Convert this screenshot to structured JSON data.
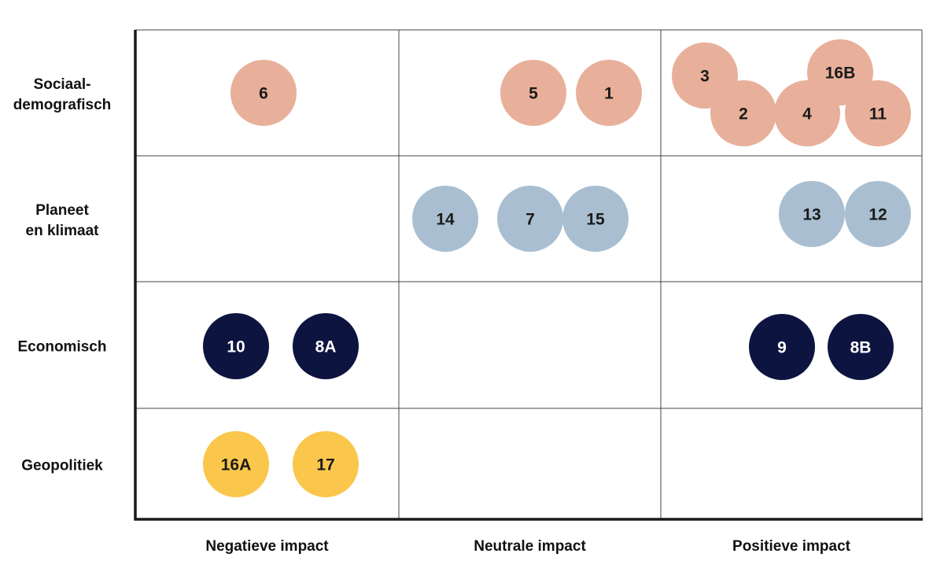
{
  "chart_data": {
    "type": "impact-matrix",
    "rows": [
      {
        "key": "sociaal",
        "label_lines": [
          "Sociaal-",
          "demografisch"
        ],
        "color": "#E8B09A",
        "text_color": "#1a1a1a"
      },
      {
        "key": "planeet",
        "label_lines": [
          "Planeet",
          "en klimaat"
        ],
        "color": "#A9BFD1",
        "text_color": "#1a1a1a"
      },
      {
        "key": "economisch",
        "label_lines": [
          "Economisch"
        ],
        "color": "#0D1440",
        "text_color": "#ffffff"
      },
      {
        "key": "geopolitiek",
        "label_lines": [
          "Geopolitiek"
        ],
        "color": "#FAC74C",
        "text_color": "#1a1a1a"
      }
    ],
    "columns": [
      {
        "key": "negatief",
        "label": "Negatieve impact"
      },
      {
        "key": "neutraal",
        "label": "Neutrale impact"
      },
      {
        "key": "positief",
        "label": "Positieve impact"
      }
    ],
    "items": [
      {
        "id": "6",
        "row": 0,
        "col": 0
      },
      {
        "id": "5",
        "row": 0,
        "col": 1
      },
      {
        "id": "1",
        "row": 0,
        "col": 1
      },
      {
        "id": "3",
        "row": 0,
        "col": 2
      },
      {
        "id": "16B",
        "row": 0,
        "col": 2
      },
      {
        "id": "2",
        "row": 0,
        "col": 2
      },
      {
        "id": "4",
        "row": 0,
        "col": 2
      },
      {
        "id": "11",
        "row": 0,
        "col": 2
      },
      {
        "id": "14",
        "row": 1,
        "col": 1
      },
      {
        "id": "7",
        "row": 1,
        "col": 1
      },
      {
        "id": "15",
        "row": 1,
        "col": 1
      },
      {
        "id": "13",
        "row": 1,
        "col": 2
      },
      {
        "id": "12",
        "row": 1,
        "col": 2
      },
      {
        "id": "10",
        "row": 2,
        "col": 0
      },
      {
        "id": "8A",
        "row": 2,
        "col": 0
      },
      {
        "id": "9",
        "row": 2,
        "col": 2
      },
      {
        "id": "8B",
        "row": 2,
        "col": 2
      },
      {
        "id": "16A",
        "row": 3,
        "col": 0
      },
      {
        "id": "17",
        "row": 3,
        "col": 0
      }
    ]
  }
}
